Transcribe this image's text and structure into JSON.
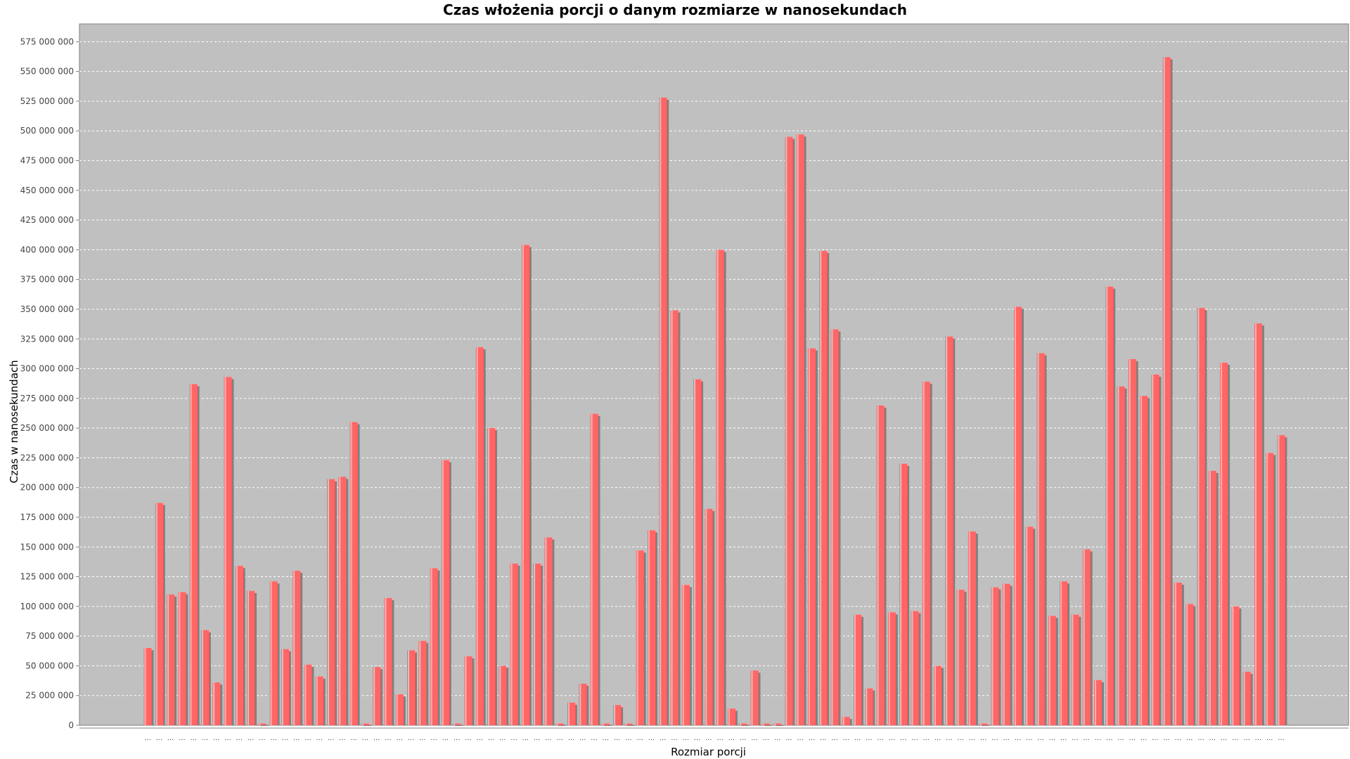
{
  "chart_data": {
    "type": "bar",
    "title": "Czas włożenia porcji o danym rozmiarze w nanosekundach",
    "xlabel": "Rozmiar porcji",
    "ylabel": "Czas w nanosekundach",
    "ylim": [
      0,
      590000000
    ],
    "yticks": [
      "0",
      "25 000 000",
      "50 000 000",
      "75 000 000",
      "100 000 000",
      "125 000 000",
      "150 000 000",
      "175 000 000",
      "200 000 000",
      "225 000 000",
      "250 000 000",
      "275 000 000",
      "300 000 000",
      "325 000 000",
      "350 000 000",
      "375 000 000",
      "400 000 000",
      "425 000 000",
      "450 000 000",
      "475 000 000",
      "500 000 000",
      "525 000 000",
      "550 000 000",
      "575 000 000"
    ],
    "category_label": "...",
    "grid": true,
    "bar_color": "#ff6666",
    "plot_background": "#c0c0c0",
    "values": [
      65000000,
      187000000,
      110000000,
      112000000,
      287000000,
      80000000,
      36000000,
      293000000,
      134000000,
      113000000,
      1500000,
      121000000,
      64000000,
      130000000,
      51000000,
      41000000,
      207000000,
      209000000,
      255000000,
      1500000,
      49000000,
      107000000,
      26000000,
      63000000,
      71000000,
      132000000,
      223000000,
      1500000,
      58000000,
      318000000,
      250000000,
      50000000,
      136000000,
      404000000,
      136000000,
      158000000,
      1500000,
      19000000,
      35000000,
      262000000,
      1500000,
      17000000,
      1500000,
      147000000,
      164000000,
      528000000,
      349000000,
      118000000,
      291000000,
      182000000,
      400000000,
      14000000,
      1500000,
      46000000,
      1500000,
      1500000,
      495000000,
      497000000,
      317000000,
      399000000,
      333000000,
      7000000,
      93000000,
      31000000,
      269000000,
      95000000,
      220000000,
      96000000,
      289000000,
      50000000,
      327000000,
      114000000,
      163000000,
      1500000,
      116000000,
      119000000,
      352000000,
      167000000,
      313000000,
      92000000,
      121000000,
      93000000,
      148000000,
      38000000,
      369000000,
      285000000,
      308000000,
      277000000,
      295000000,
      562000000,
      120000000,
      102000000,
      351000000,
      214000000,
      305000000,
      100000000,
      45000000,
      338000000,
      229000000,
      244000000
    ]
  }
}
